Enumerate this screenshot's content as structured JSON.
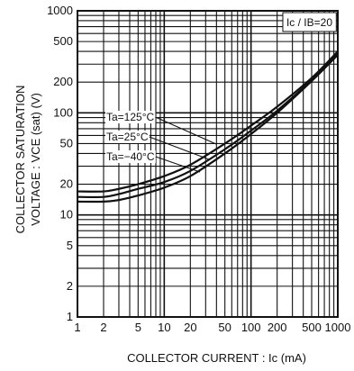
{
  "chart_data": {
    "type": "line",
    "xscale": "log",
    "yscale": "log",
    "xlim": [
      1,
      1000
    ],
    "ylim": [
      1,
      1000
    ],
    "x_ticks": [
      "1",
      "2",
      "5",
      "10",
      "20",
      "50",
      "100",
      "200",
      "500",
      "1000"
    ],
    "y_ticks": [
      "1",
      "2",
      "5",
      "10",
      "20",
      "50",
      "100",
      "200",
      "500",
      "1000"
    ],
    "xlabel": "COLLECTOR CURRENT : Ic (mA)",
    "ylabel_line1": "COLLECTOR SATURATION",
    "ylabel_line2": "VOLTAGE : VCE (sat) (V)",
    "condition": "Ic / IB=20",
    "grid": true,
    "series": [
      {
        "name": "Ta=125°C",
        "x": [
          1,
          2,
          3,
          5,
          10,
          20,
          50,
          100,
          200,
          500,
          1000
        ],
        "values": [
          17,
          17,
          18,
          20,
          24,
          31,
          50,
          75,
          115,
          220,
          400
        ]
      },
      {
        "name": "Ta=25°C",
        "x": [
          1,
          2,
          3,
          5,
          10,
          20,
          50,
          100,
          200,
          500,
          1000
        ],
        "values": [
          15,
          15,
          16,
          18,
          21,
          27,
          44,
          67,
          105,
          210,
          380
        ]
      },
      {
        "name": "Ta=−40°C",
        "x": [
          1,
          2,
          3,
          5,
          10,
          20,
          50,
          100,
          200,
          500,
          1000
        ],
        "values": [
          13.5,
          13.5,
          14,
          15.5,
          18.5,
          24,
          40,
          62,
          100,
          205,
          370
        ]
      }
    ]
  }
}
